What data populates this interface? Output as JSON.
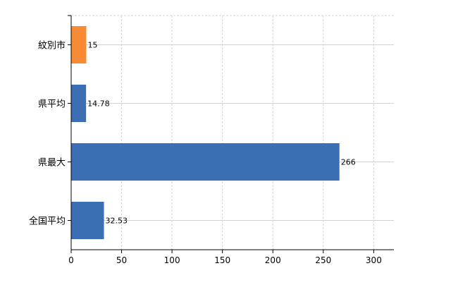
{
  "chart_data": {
    "type": "bar",
    "orientation": "horizontal",
    "categories": [
      "紋別市",
      "県平均",
      "県最大",
      "全国平均"
    ],
    "values": [
      15,
      14.78,
      266,
      32.53
    ],
    "value_labels": [
      "15",
      "14.78",
      "266",
      "32.53"
    ],
    "bar_colors": [
      "#f68b34",
      "#3c6eb4",
      "#3c6eb4",
      "#3c6eb4"
    ],
    "title": "",
    "xlabel": "",
    "ylabel": "",
    "xlim": [
      0,
      320
    ],
    "xticks": [
      0,
      50,
      100,
      150,
      200,
      250,
      300
    ],
    "grid": true,
    "legend": "none"
  }
}
